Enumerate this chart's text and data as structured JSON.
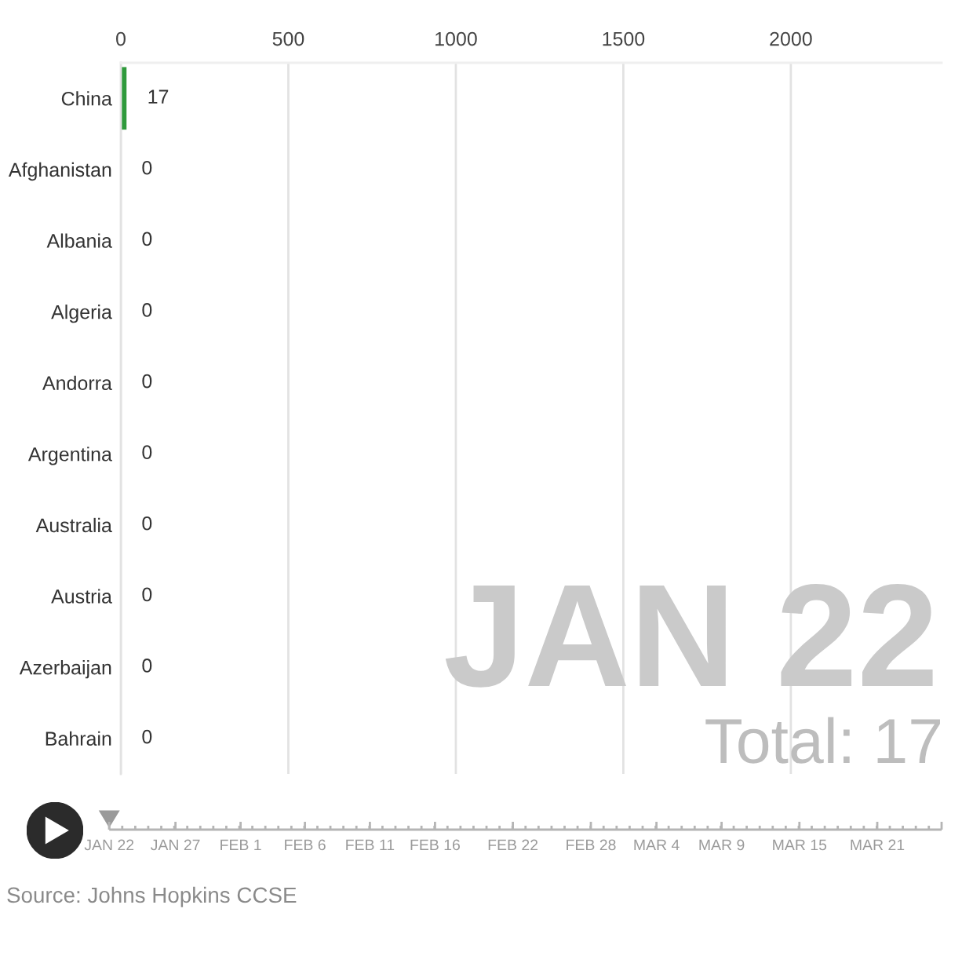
{
  "chart_data": [
    {
      "type": "bar",
      "orientation": "horizontal",
      "categories": [
        "China",
        "Afghanistan",
        "Albania",
        "Algeria",
        "Andorra",
        "Argentina",
        "Australia",
        "Austria",
        "Azerbaijan",
        "Bahrain"
      ],
      "values": [
        17,
        0,
        0,
        0,
        0,
        0,
        0,
        0,
        0,
        0
      ],
      "color": "#2f9a3c",
      "xlim": [
        0,
        2450
      ],
      "xticks": [
        0,
        500,
        1000,
        1500,
        2000
      ],
      "grid": "x",
      "data_labels": true,
      "annotations": [
        "JAN 22",
        "Total: 17",
        "Source: Johns Hopkins CCSE"
      ]
    },
    {
      "type": "other",
      "annotations": [
        "JAN 22",
        "JAN 27",
        "FEB 1",
        "FEB 6",
        "FEB 11",
        "FEB 16",
        "FEB 22",
        "FEB 28",
        "MAR 4",
        "MAR 9",
        "MAR 15",
        "MAR 21"
      ]
    }
  ]
}
